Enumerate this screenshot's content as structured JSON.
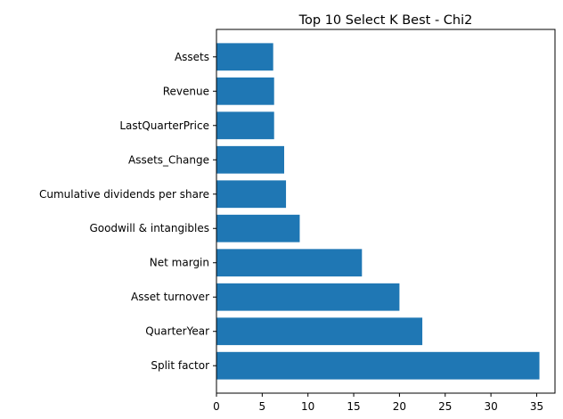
{
  "chart_data": {
    "type": "bar",
    "orientation": "horizontal",
    "title": "Top 10 Select K Best - Chi2",
    "xlabel": "",
    "ylabel": "",
    "categories": [
      "Assets",
      "Revenue",
      "LastQuarterPrice",
      "Assets_Change",
      "Cumulative dividends per share",
      "Goodwill & intangibles",
      "Net margin",
      "Asset turnover",
      "QuarterYear",
      "Split factor"
    ],
    "values": [
      6.2,
      6.3,
      6.3,
      7.4,
      7.6,
      9.1,
      15.9,
      20.0,
      22.5,
      35.3
    ],
    "xlim": [
      0,
      37
    ],
    "xticks": [
      0,
      5,
      10,
      15,
      20,
      25,
      30,
      35
    ],
    "bar_color": "#1f77b4",
    "grid": false,
    "legend": "none"
  }
}
